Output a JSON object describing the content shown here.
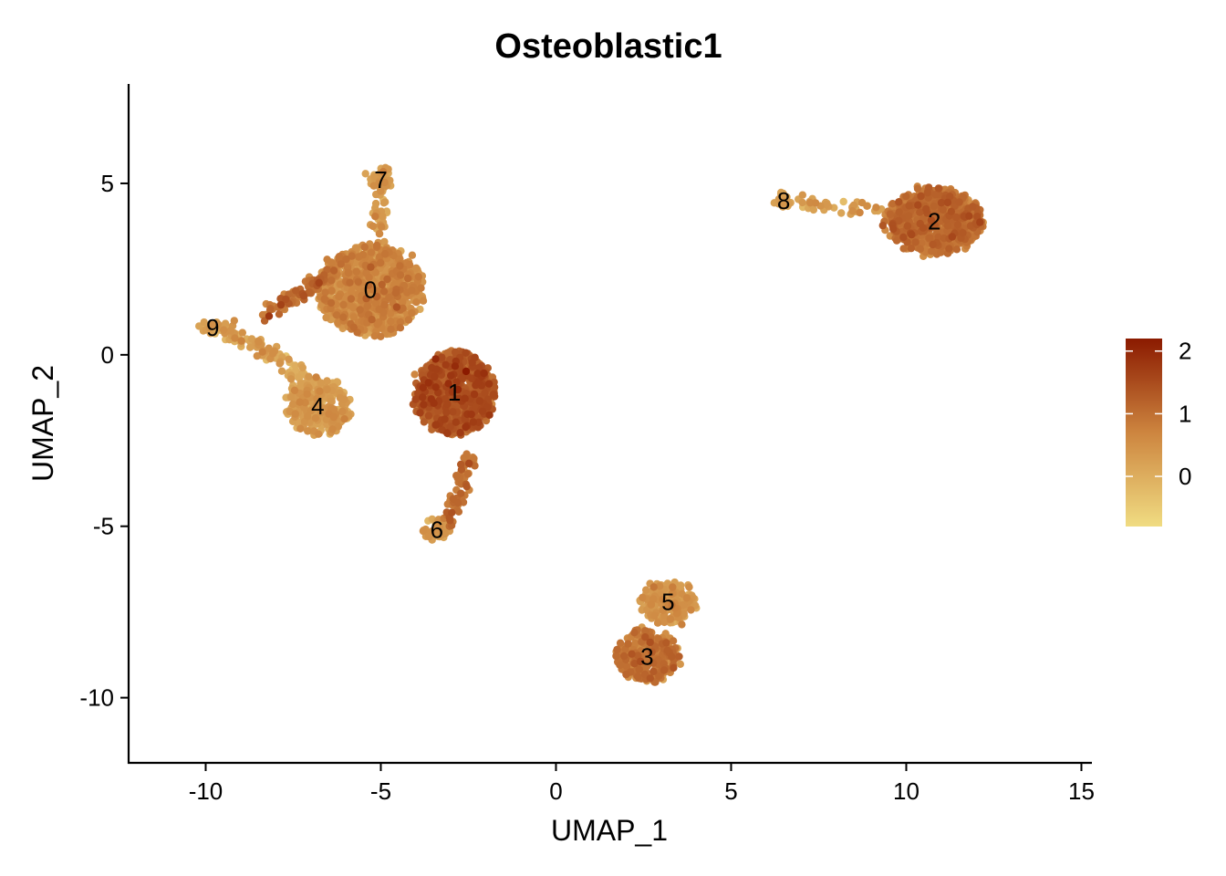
{
  "chart_data": {
    "type": "scatter",
    "title": "Osteoblastic1",
    "xlabel": "UMAP_1",
    "ylabel": "UMAP_2",
    "xlim": [
      -12.2,
      15.3
    ],
    "ylim": [
      -11.9,
      7.9
    ],
    "x_ticks": [
      -10,
      -5,
      0,
      5,
      10,
      15
    ],
    "x_tick_labels": [
      "-10",
      "-5",
      "0",
      "5",
      "10",
      "15"
    ],
    "y_ticks": [
      -10,
      -5,
      0,
      5
    ],
    "y_tick_labels": [
      "-10",
      "-5",
      "0",
      "5"
    ],
    "colorbar": {
      "min": -0.8,
      "max": 2.2,
      "ticks": [
        0,
        1,
        2
      ],
      "tick_labels": [
        "0",
        "1",
        "2"
      ],
      "color_low": "#f0dc82",
      "color_mid": "#cd853f",
      "color_high": "#8b1a00"
    },
    "grid": false,
    "clusters": [
      {
        "label": "0",
        "x": -5.3,
        "y": 1.9,
        "mean_expression": 0.45
      },
      {
        "label": "1",
        "x": -2.9,
        "y": -1.1,
        "mean_expression": 1.15
      },
      {
        "label": "2",
        "x": 10.8,
        "y": 3.9,
        "mean_expression": 0.85
      },
      {
        "label": "3",
        "x": 2.6,
        "y": -8.8,
        "mean_expression": 0.8
      },
      {
        "label": "4",
        "x": -6.8,
        "y": -1.5,
        "mean_expression": 0.2
      },
      {
        "label": "5",
        "x": 3.2,
        "y": -7.2,
        "mean_expression": 0.3
      },
      {
        "label": "6",
        "x": -3.4,
        "y": -5.1,
        "mean_expression": 0.3
      },
      {
        "label": "7",
        "x": -5.0,
        "y": 5.1,
        "mean_expression": 0.25
      },
      {
        "label": "8",
        "x": 6.5,
        "y": 4.5,
        "mean_expression": 0.25
      },
      {
        "label": "9",
        "x": -9.8,
        "y": 0.8,
        "mean_expression": 0.2
      }
    ]
  }
}
